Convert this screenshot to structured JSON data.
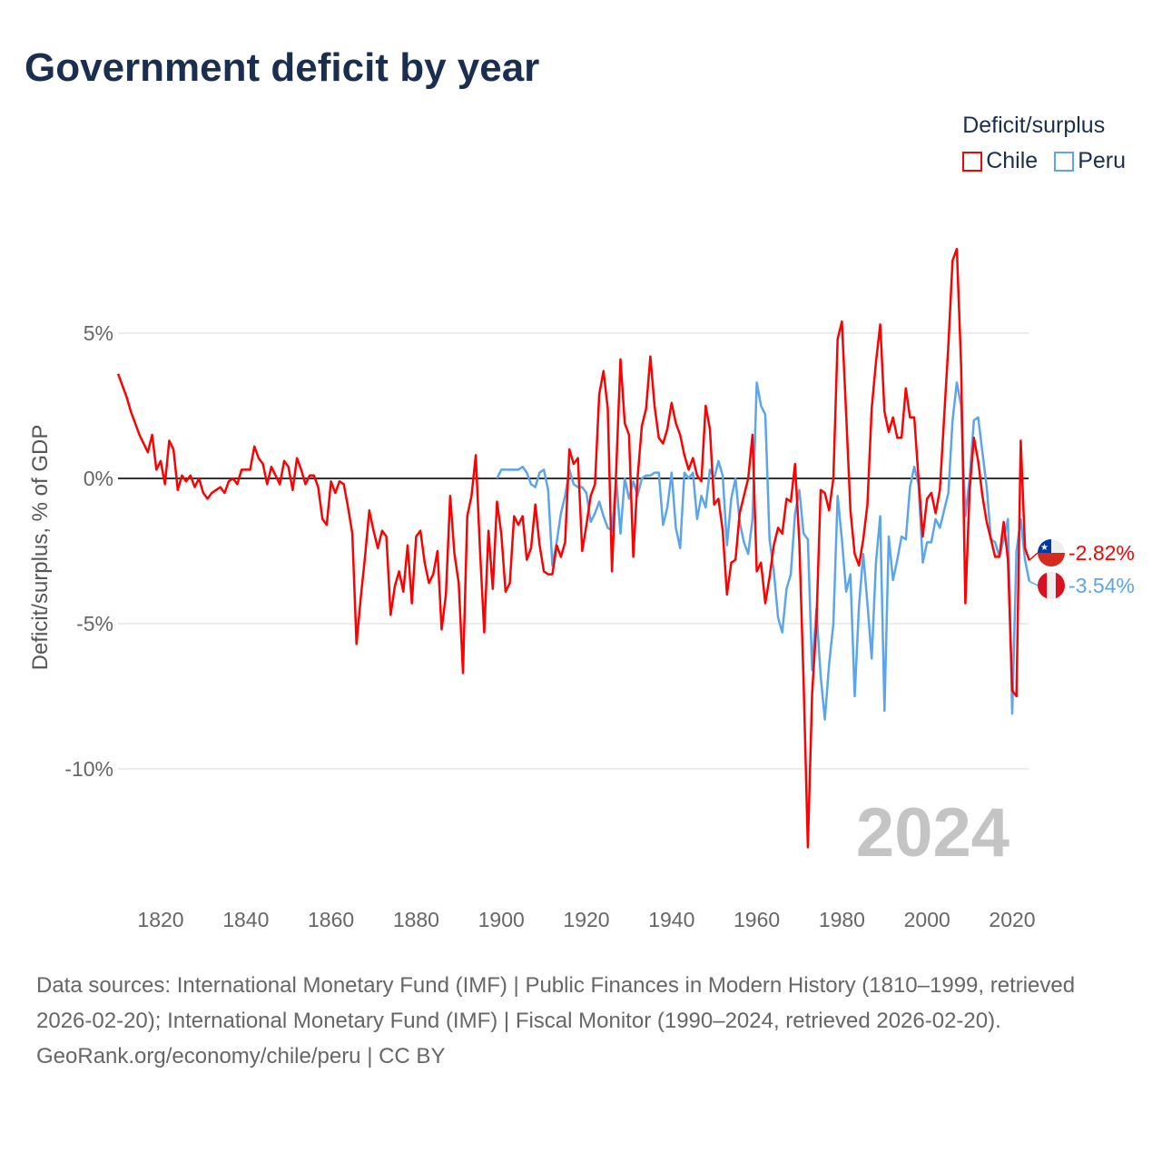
{
  "title": "Government deficit by year",
  "legend": {
    "title": "Deficit/surplus",
    "items": [
      {
        "label": "Chile",
        "color": "#ff0000"
      },
      {
        "label": "Peru",
        "color": "#5aa5ec"
      }
    ]
  },
  "year_label": "2024",
  "footer": {
    "sources": "Data sources: International Monetary Fund (IMF) | Public Finances in Modern History (1810–1999, retrieved 2026-02-20); International Monetary Fund (IMF) | Fiscal Monitor (1990–2024, retrieved 2026-02-20).",
    "credit": "GeoRank.org/economy/chile/peru | CC BY"
  },
  "chart_data": {
    "type": "line",
    "title": "Government deficit by year",
    "xlabel": "",
    "ylabel": "Deficit/surplus, % of GDP",
    "xlim": [
      1810,
      2024
    ],
    "ylim": [
      -13,
      8.5
    ],
    "xticks": [
      1820,
      1840,
      1860,
      1880,
      1900,
      1920,
      1940,
      1960,
      1980,
      2000,
      2020
    ],
    "yticks": [
      {
        "value": 5,
        "label": "5%"
      },
      {
        "value": 0,
        "label": "0%"
      },
      {
        "value": -5,
        "label": "-5%"
      },
      {
        "value": -10,
        "label": "-10%"
      }
    ],
    "grid": true,
    "legend_position": "top-right",
    "series": [
      {
        "name": "Chile",
        "color": "#ff0000",
        "start_year": 1810,
        "end_label": "-2.82%",
        "values": [
          3.6,
          3.2,
          2.8,
          2.3,
          1.9,
          1.5,
          1.2,
          0.9,
          1.5,
          0.3,
          0.6,
          -0.2,
          1.3,
          1.0,
          -0.4,
          0.1,
          -0.1,
          0.1,
          -0.3,
          0.0,
          -0.5,
          -0.7,
          -0.5,
          -0.4,
          -0.3,
          -0.5,
          -0.1,
          0.0,
          -0.2,
          0.3,
          0.3,
          0.3,
          1.1,
          0.7,
          0.5,
          -0.2,
          0.4,
          0.1,
          -0.2,
          0.6,
          0.4,
          -0.4,
          0.7,
          0.3,
          -0.2,
          0.1,
          0.1,
          -0.3,
          -1.4,
          -1.6,
          -0.1,
          -0.5,
          -0.1,
          -0.2,
          -1.0,
          -1.9,
          -5.7,
          -4.1,
          -2.7,
          -1.1,
          -1.8,
          -2.4,
          -1.8,
          -2.0,
          -4.7,
          -3.7,
          -3.2,
          -3.9,
          -2.3,
          -4.3,
          -2.0,
          -1.8,
          -2.9,
          -3.6,
          -3.3,
          -2.5,
          -5.2,
          -4.0,
          -0.6,
          -2.6,
          -3.6,
          -6.7,
          -1.3,
          -0.6,
          0.8,
          -2.5,
          -5.3,
          -1.8,
          -3.8,
          -0.8,
          -1.9,
          -3.9,
          -3.6,
          -1.3,
          -1.6,
          -1.3,
          -2.8,
          -2.4,
          -0.9,
          -2.3,
          -3.2,
          -3.3,
          -3.3,
          -2.3,
          -2.7,
          -2.2,
          1.0,
          0.5,
          0.7,
          -2.5,
          -1.6,
          -0.6,
          -0.2,
          2.9,
          3.7,
          2.4,
          -3.2,
          0.3,
          4.1,
          1.9,
          1.5,
          -2.7,
          0.0,
          1.8,
          2.4,
          4.2,
          2.5,
          1.4,
          1.2,
          1.7,
          2.6,
          1.9,
          1.5,
          0.8,
          0.3,
          0.7,
          0.1,
          -0.1,
          2.5,
          1.7,
          -0.9,
          -0.7,
          -1.8,
          -4.0,
          -2.9,
          -2.8,
          -1.2,
          -0.6,
          0.0,
          1.5,
          -3.2,
          -2.9,
          -4.3,
          -3.4,
          -2.3,
          -1.7,
          -1.9,
          -0.7,
          -0.8,
          0.5,
          -2.2,
          -7.0,
          -12.7,
          -7.4,
          -5.0,
          -0.4,
          -0.5,
          -1.1,
          0.0,
          4.8,
          5.4,
          2.2,
          -1.1,
          -2.6,
          -3.0,
          -2.1,
          -0.9,
          2.4,
          4.0,
          5.3,
          2.3,
          1.6,
          2.1,
          1.4,
          1.4,
          3.1,
          2.1,
          2.1,
          0.0,
          -2.0,
          -0.7,
          -0.5,
          -1.2,
          -0.4,
          2.1,
          4.6,
          7.5,
          7.9,
          3.9,
          -4.3,
          -0.4,
          1.4,
          0.6,
          -0.6,
          -1.5,
          -2.1,
          -2.7,
          -2.7,
          -1.5,
          -2.8,
          -7.3,
          -7.5,
          1.3,
          -2.4,
          -2.82
        ]
      },
      {
        "name": "Peru",
        "color": "#5aa5ec",
        "start_year": 1899,
        "end_label": "-3.54%",
        "values": [
          0.0,
          0.3,
          0.3,
          0.3,
          0.3,
          0.3,
          0.4,
          0.2,
          -0.2,
          -0.3,
          0.2,
          0.3,
          -0.4,
          -3.0,
          -2.2,
          -1.2,
          -0.6,
          0.3,
          -0.2,
          -0.3,
          -0.3,
          -0.5,
          -1.5,
          -1.2,
          -0.8,
          -1.3,
          -1.7,
          -1.8,
          0.0,
          -1.9,
          0.0,
          -0.7,
          -0.1,
          -0.6,
          0.0,
          0.1,
          0.1,
          0.2,
          0.2,
          -1.6,
          -1.0,
          0.2,
          -1.7,
          -2.4,
          0.2,
          0.0,
          0.2,
          -1.4,
          -0.6,
          -1.0,
          0.3,
          0.0,
          0.6,
          0.1,
          -2.3,
          -0.7,
          0.0,
          -1.5,
          -2.2,
          -2.6,
          -1.4,
          3.3,
          2.5,
          2.2,
          -2.1,
          -3.2,
          -4.8,
          -5.3,
          -3.8,
          -3.3,
          -1.2,
          -0.4,
          -1.9,
          -2.1,
          -6.6,
          -4.5,
          -6.8,
          -8.3,
          -6.4,
          -5.0,
          -0.6,
          -2.1,
          -3.9,
          -3.3,
          -7.5,
          -4.4,
          -2.6,
          -4.3,
          -6.2,
          -2.9,
          -1.3,
          -8.0,
          -2.0,
          -3.5,
          -2.8,
          -2.0,
          -2.1,
          -0.3,
          0.4,
          -0.2,
          -2.9,
          -2.2,
          -2.2,
          -1.4,
          -1.7,
          -1.1,
          -0.5,
          2.0,
          3.3,
          2.5,
          -1.3,
          0.0,
          2.0,
          2.1,
          0.9,
          -0.3,
          -2.1,
          -2.2,
          -2.7,
          -2.1,
          -1.4,
          -8.1,
          -2.5,
          -1.4,
          -2.8,
          -3.54
        ]
      }
    ]
  }
}
